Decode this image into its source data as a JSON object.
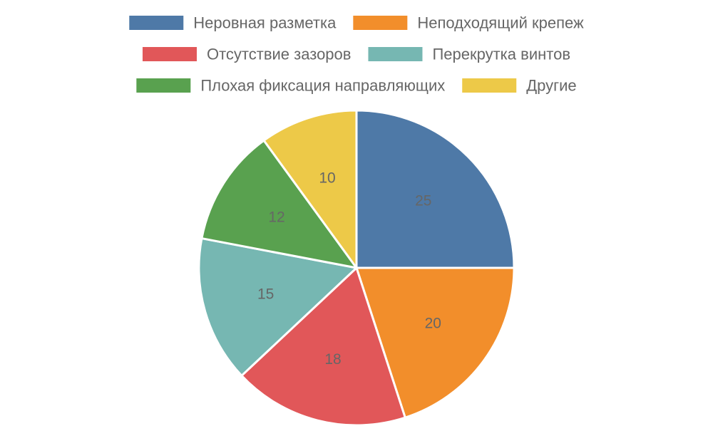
{
  "chart_data": {
    "type": "pie",
    "legend_position": "top",
    "start_angle": "12 o'clock",
    "direction": "clockwise",
    "slices": [
      {
        "label": "Неровная разметка",
        "value": 25,
        "color": "#4e79a7"
      },
      {
        "label": "Неподходящий крепеж",
        "value": 20,
        "color": "#f28e2b"
      },
      {
        "label": "Отсутствие зазоров",
        "value": 18,
        "color": "#e15759"
      },
      {
        "label": "Перекрутка винтов",
        "value": 15,
        "color": "#76b7b2"
      },
      {
        "label": "Плохая фиксация направляющих",
        "value": 12,
        "color": "#59a14f"
      },
      {
        "label": "Другие",
        "value": 10,
        "color": "#edc948"
      }
    ]
  }
}
